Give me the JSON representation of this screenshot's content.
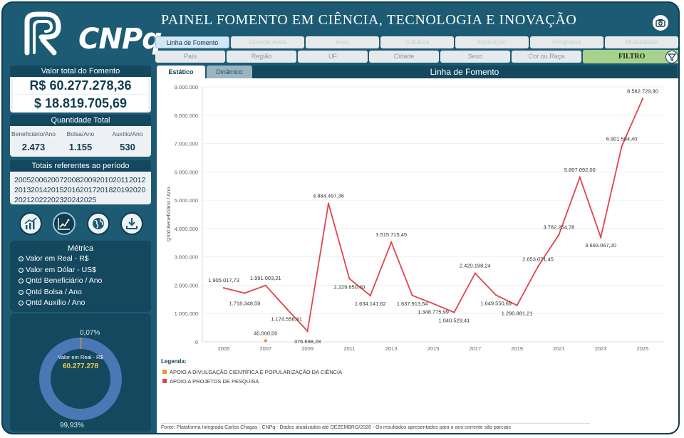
{
  "header": {
    "logo_text": "CNPq",
    "title": "PAINEL FOMENTO EM CIÊNCIA, TECNOLOGIA E INOVAÇÃO"
  },
  "sidebar": {
    "valor_total": {
      "title": "Valor total do Fomento",
      "real": "R$ 60.277.278,36",
      "dollar": "$ 18.819.705,69"
    },
    "quantidade": {
      "title": "Quantidade Total",
      "items": [
        {
          "label": "Beneficiário/Ano",
          "value": "2.473"
        },
        {
          "label": "Bolsa/Ano",
          "value": "1.155"
        },
        {
          "label": "Auxílio/Ano",
          "value": "530"
        }
      ]
    },
    "periodo": {
      "title": "Totais referentes ao período",
      "years": [
        "2005",
        "2006",
        "2007",
        "2008",
        "2009",
        "2010",
        "2011",
        "2012",
        "2013",
        "2014",
        "2015",
        "2016",
        "2017",
        "2018",
        "2019",
        "2020",
        "2021",
        "2022",
        "2023",
        "2024",
        "2025"
      ]
    },
    "metrica": {
      "title": "Métrica",
      "options": [
        "Valor em Real - R$",
        "Valor em Dólar - US$",
        "Qntd Beneficiário / Ano",
        "Qntd Bolsa / Ano",
        "Qntd Auxílio / Ano"
      ],
      "selected_index": 0
    },
    "donut": {
      "label": "Valor em Real - R$",
      "value": "60.277.278",
      "pct_small": "0,07%",
      "pct_large": "99,93%",
      "share_small": 0.0007
    }
  },
  "tabs_row1": [
    {
      "label": "Linha de Fomento",
      "active": true
    },
    {
      "label": "Grande Área"
    },
    {
      "label": "Área"
    },
    {
      "label": "Subárea"
    },
    {
      "label": "Instituição"
    },
    {
      "label": "Programa"
    },
    {
      "label": "Modalidade"
    }
  ],
  "tabs_row2": [
    "País",
    "Região",
    "UF",
    "Cidade",
    "Sexo",
    "Cor ou Raça"
  ],
  "filter_label": "FILTRO",
  "view_tabs": {
    "static": "Estático",
    "dynamic": "Dinâmico"
  },
  "chart_title": "Linha de Fomento",
  "chart_data": {
    "type": "line",
    "title": "Linha de Fomento",
    "ylabel": "Qntd Beneficiário / Ano",
    "xlabel": "",
    "ylim": [
      0,
      9000000
    ],
    "yticks": [
      "0",
      "1.000.000",
      "2.000.000",
      "3.000.000",
      "4.000.000",
      "5.000.000",
      "6.000.000",
      "7.000.000",
      "8.000.000",
      "9.000.000"
    ],
    "xticks": [
      "2005",
      "2007",
      "2009",
      "2011",
      "2013",
      "2015",
      "2017",
      "2019",
      "2021",
      "2023",
      "2025"
    ],
    "series": [
      {
        "name": "APOIO A PROJETOS DE PESQUISA",
        "color": "#e0454e",
        "x": [
          2005,
          2006,
          2007,
          2008,
          2009,
          2010,
          2011,
          2012,
          2013,
          2014,
          2015,
          2016,
          2017,
          2018,
          2019,
          2020,
          2021,
          2022,
          2023,
          2024,
          2025
        ],
        "values": [
          1905017.73,
          1718348.59,
          1991003.21,
          1174556.91,
          376698.28,
          4884497.36,
          2229650.4,
          1634141.62,
          3515715.45,
          1637913.54,
          1348775.99,
          1040529.41,
          2420198.24,
          1649550.69,
          1290881.21,
          2653071.45,
          3782254.78,
          5807092.0,
          3693067.2,
          6901584.4,
          8582729.9
        ],
        "labels": [
          "1.905.017,73",
          "1.718.348,59",
          "1.991.003,21",
          "1.174.556,91",
          "376.698,28",
          "4.884.497,36",
          "2.229.650,40",
          "1.634.141,62",
          "3.515.715,45",
          "1.637.913,54",
          "1.348.775,99",
          "1.040.529,41",
          "2.420.198,24",
          "1.649.550,69",
          "1.290.881,21",
          "2.653.071,45",
          "3.782.254,78",
          "5.807.092,00",
          "3.693.067,20",
          "6.901.584,40",
          "8.582.729,90"
        ],
        "labeled": [
          true,
          true,
          true,
          true,
          true,
          true,
          true,
          true,
          true,
          true,
          true,
          true,
          true,
          true,
          true,
          true,
          true,
          true,
          true,
          true,
          true
        ]
      },
      {
        "name": "APOIO A DIVULGAÇÃO CIENTÍFICA E POPULARIZAÇÃO DA CIÊNCIA",
        "color": "#f0962c",
        "x": [
          2007
        ],
        "values": [
          40000.0
        ],
        "labels": [
          "40.000,00"
        ],
        "labeled": [
          true
        ]
      }
    ],
    "legend_title": "Legenda:",
    "legend": [
      "APOIO A DIVULGAÇÃO CIENTÍFICA E POPULARIZAÇÃO DA CIÊNCIA",
      "APOIO A PROJETOS DE PESQUISA"
    ]
  },
  "colors": {
    "legend": [
      "#f0962c",
      "#e0454e"
    ]
  },
  "footer": "Fonte: Plataforma Integrada Carlos Chagas - CNPq - Dados atualizados até DEZEMBRO/2026 - Os resultados apresentados para o ano corrente são parciais"
}
